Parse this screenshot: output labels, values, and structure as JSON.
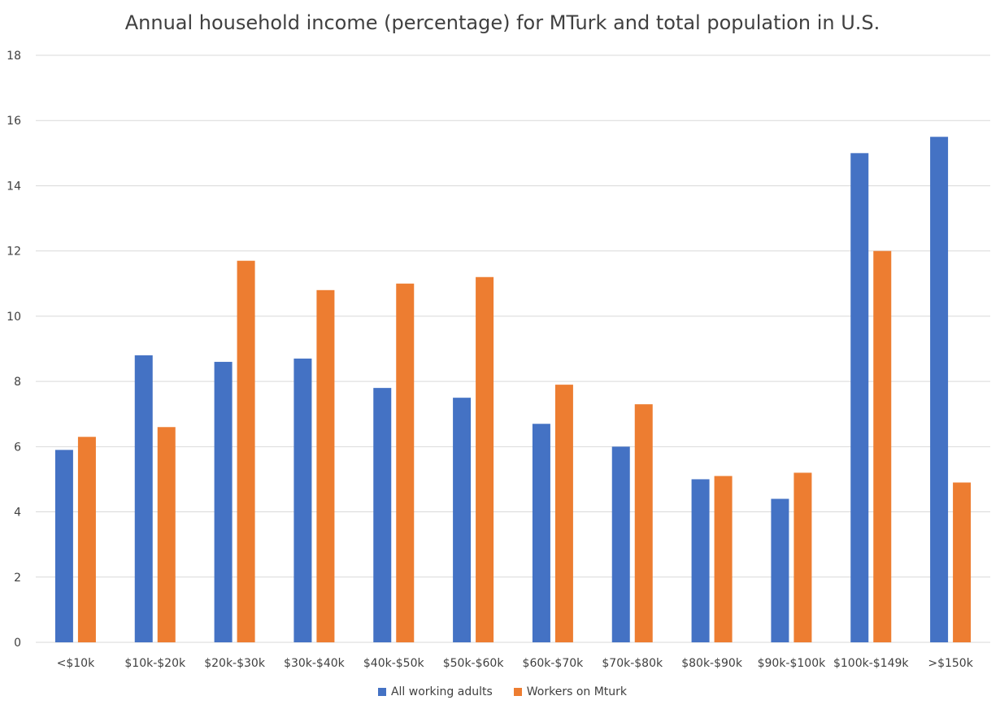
{
  "chart_data": {
    "type": "bar",
    "title": "Annual household income (percentage) for MTurk and total population in U.S.",
    "xlabel": "",
    "ylabel": "",
    "ylim": [
      0,
      18
    ],
    "yticks": [
      "0",
      "2",
      "4",
      "6",
      "8",
      "10",
      "12",
      "14",
      "16",
      "18"
    ],
    "grid": true,
    "legend_position": "bottom",
    "categories": [
      "<$10k",
      "$10k-$20k",
      "$20k-$30k",
      "$30k-$40k",
      "$40k-$50k",
      "$50k-$60k",
      "$60k-$70k",
      "$70k-$80k",
      "$80k-$90k",
      "$90k-$100k",
      "$100k-$149k",
      ">$150k"
    ],
    "series": [
      {
        "name": "All working adults",
        "color": "#4472C4",
        "values": [
          5.9,
          8.8,
          8.6,
          8.7,
          7.8,
          7.5,
          6.7,
          6.0,
          5.0,
          4.4,
          15.0,
          15.5
        ]
      },
      {
        "name": "Workers on Mturk",
        "color": "#ED7D31",
        "values": [
          6.3,
          6.6,
          11.7,
          10.8,
          11.0,
          11.2,
          7.9,
          7.3,
          5.1,
          5.2,
          12.0,
          4.9
        ]
      }
    ]
  }
}
